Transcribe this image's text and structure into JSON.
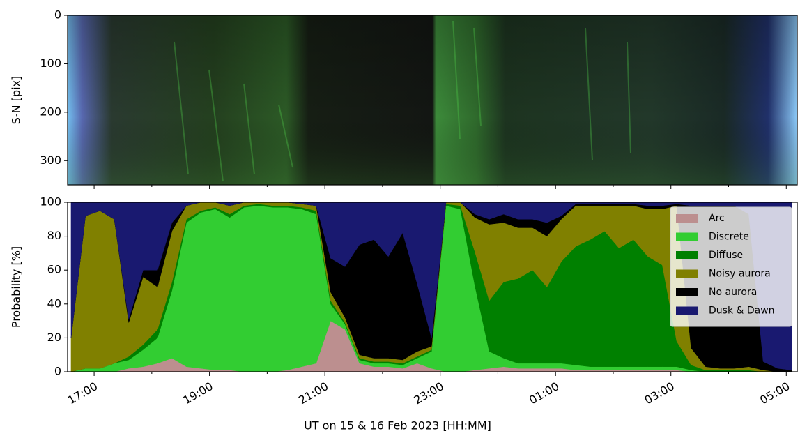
{
  "chart_data": [
    {
      "type": "image",
      "ylabel": "S-N [pix]",
      "ylim": [
        0,
        350
      ],
      "y_inverted": true,
      "yticks": [
        0,
        100,
        200,
        300
      ]
    },
    {
      "type": "stacked_area",
      "ylabel": "Probability [%]",
      "xlabel": "UT on 15 & 16 Feb 2023 [HH:MM]",
      "xlim": [
        16.54,
        29.19
      ],
      "ylim": [
        0,
        100
      ],
      "yticks": [
        0,
        20,
        40,
        60,
        80,
        100
      ],
      "xticks": [
        {
          "value": 17,
          "label": "17:00"
        },
        {
          "value": 19,
          "label": "19:00"
        },
        {
          "value": 21,
          "label": "21:00"
        },
        {
          "value": 23,
          "label": "23:00"
        },
        {
          "value": 25,
          "label": "01:00"
        },
        {
          "value": 27,
          "label": "03:00"
        },
        {
          "value": 29,
          "label": "05:00"
        }
      ],
      "xminorticks": [
        18,
        20,
        22,
        24,
        26,
        28
      ],
      "legend": "upper right",
      "x": [
        16.6,
        16.85,
        17.1,
        17.35,
        17.6,
        17.85,
        18.1,
        18.35,
        18.6,
        18.85,
        19.1,
        19.35,
        19.6,
        19.85,
        20.1,
        20.35,
        20.6,
        20.85,
        21.1,
        21.35,
        21.6,
        21.85,
        22.1,
        22.35,
        22.6,
        22.85,
        23.1,
        23.35,
        23.6,
        23.85,
        24.1,
        24.35,
        24.6,
        24.85,
        25.1,
        25.35,
        25.6,
        25.85,
        26.1,
        26.35,
        26.6,
        26.85,
        27.1,
        27.35,
        27.6,
        27.85,
        28.1,
        28.35,
        28.6,
        28.85,
        29.1
      ],
      "series": [
        {
          "name": "Arc",
          "color": "#bc8f8f",
          "values": [
            0,
            0,
            0,
            0,
            2,
            3,
            5,
            8,
            3,
            2,
            1,
            1,
            0,
            0,
            0,
            1,
            3,
            5,
            30,
            25,
            5,
            3,
            3,
            2,
            5,
            2,
            0,
            0,
            1,
            2,
            3,
            2,
            2,
            2,
            2,
            1,
            1,
            1,
            1,
            1,
            1,
            1,
            1,
            0,
            0,
            0,
            0,
            0,
            0,
            0,
            0
          ]
        },
        {
          "name": "Discrete",
          "color": "#32cd32",
          "values": [
            0,
            2,
            2,
            5,
            5,
            10,
            15,
            40,
            85,
            92,
            95,
            90,
            97,
            98,
            97,
            96,
            93,
            88,
            10,
            3,
            2,
            2,
            2,
            2,
            3,
            10,
            98,
            96,
            50,
            10,
            5,
            3,
            3,
            3,
            3,
            3,
            2,
            2,
            2,
            2,
            2,
            2,
            2,
            1,
            0,
            0,
            0,
            0,
            0,
            0,
            0
          ]
        },
        {
          "name": "Diffuse",
          "color": "#008000",
          "values": [
            0,
            0,
            0,
            0,
            2,
            3,
            5,
            5,
            2,
            1,
            1,
            2,
            1,
            1,
            1,
            1,
            1,
            2,
            2,
            1,
            1,
            1,
            1,
            1,
            1,
            1,
            1,
            2,
            20,
            30,
            45,
            50,
            55,
            45,
            60,
            70,
            75,
            80,
            70,
            75,
            65,
            60,
            15,
            3,
            1,
            1,
            1,
            1,
            0,
            0,
            0
          ]
        },
        {
          "name": "Noisy aurora",
          "color": "#808000",
          "values": [
            20,
            90,
            93,
            85,
            20,
            40,
            25,
            30,
            8,
            5,
            3,
            5,
            2,
            1,
            2,
            2,
            2,
            3,
            5,
            3,
            2,
            2,
            2,
            2,
            3,
            2,
            1,
            2,
            20,
            45,
            35,
            30,
            25,
            30,
            25,
            24,
            20,
            15,
            25,
            20,
            28,
            33,
            80,
            10,
            2,
            1,
            1,
            2,
            1,
            0,
            0
          ]
        },
        {
          "name": "No aurora",
          "color": "#000000",
          "values": [
            0,
            0,
            0,
            0,
            2,
            4,
            10,
            5,
            0,
            0,
            0,
            0,
            0,
            0,
            0,
            0,
            0,
            0,
            20,
            30,
            65,
            70,
            60,
            75,
            40,
            5,
            0,
            0,
            2,
            3,
            5,
            5,
            5,
            8,
            2,
            1,
            1,
            1,
            1,
            1,
            2,
            2,
            1,
            84,
            95,
            96,
            96,
            90,
            5,
            2,
            1
          ]
        },
        {
          "name": "Dusk & Dawn",
          "color": "#191970",
          "values": [
            80,
            8,
            5,
            10,
            69,
            40,
            40,
            12,
            2,
            0,
            0,
            2,
            0,
            0,
            0,
            0,
            1,
            2,
            33,
            38,
            25,
            22,
            32,
            18,
            48,
            80,
            0,
            0,
            7,
            10,
            7,
            10,
            10,
            12,
            8,
            1,
            1,
            1,
            1,
            1,
            2,
            2,
            1,
            2,
            2,
            2,
            2,
            7,
            94,
            98,
            99
          ]
        }
      ]
    }
  ]
}
